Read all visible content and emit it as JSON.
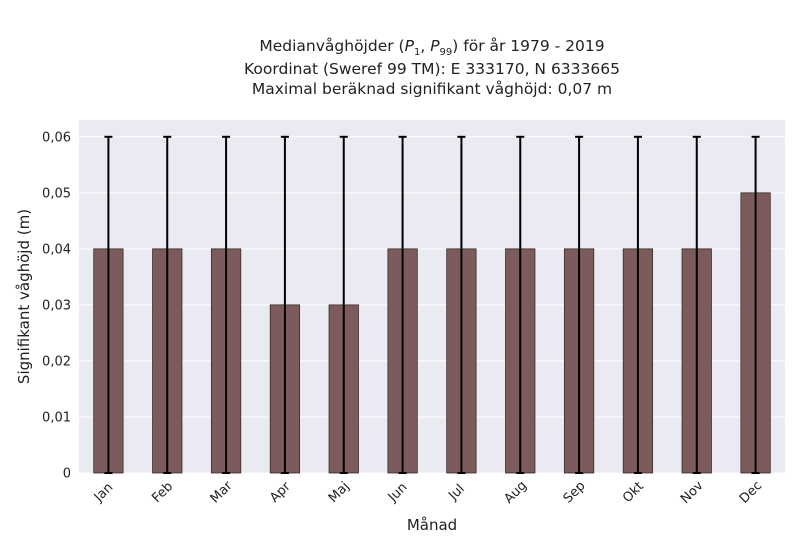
{
  "chart_data": {
    "type": "bar",
    "title_lines": [
      "Medianvåghöjder (P1, P99) för år 1979 - 2019",
      "Koordinat (Sweref 99 TM): E 333170, N 6333665",
      "Maximal beräknad signifikant våghöjd: 0,07 m"
    ],
    "xlabel": "Månad",
    "ylabel": "Signifikant våghöjd (m)",
    "categories": [
      "Jan",
      "Feb",
      "Mar",
      "Apr",
      "Maj",
      "Jun",
      "Jul",
      "Aug",
      "Sep",
      "Okt",
      "Nov",
      "Dec"
    ],
    "series": [
      {
        "values": [
          0.04,
          0.04,
          0.04,
          0.03,
          0.03,
          0.04,
          0.04,
          0.04,
          0.04,
          0.04,
          0.04,
          0.05
        ],
        "error_low": [
          0,
          0,
          0,
          0,
          0,
          0,
          0,
          0,
          0,
          0,
          0,
          0
        ],
        "error_high": [
          0.06,
          0.06,
          0.06,
          0.06,
          0.06,
          0.06,
          0.06,
          0.06,
          0.06,
          0.06,
          0.06,
          0.06
        ]
      }
    ],
    "ylim": [
      0,
      0.063
    ],
    "yticks": [
      0,
      0.01,
      0.02,
      0.03,
      0.04,
      0.05,
      0.06
    ],
    "ytick_labels": [
      "0",
      "0,01",
      "0,02",
      "0,03",
      "0,04",
      "0,05",
      "0,06"
    ],
    "grid": true,
    "colors": {
      "bar_fill": "#7b5b5b",
      "bar_edge": "#3a2a2a",
      "error_bar": "#000000",
      "plot_background": "#eaeaf2",
      "grid": "#ffffff"
    }
  }
}
